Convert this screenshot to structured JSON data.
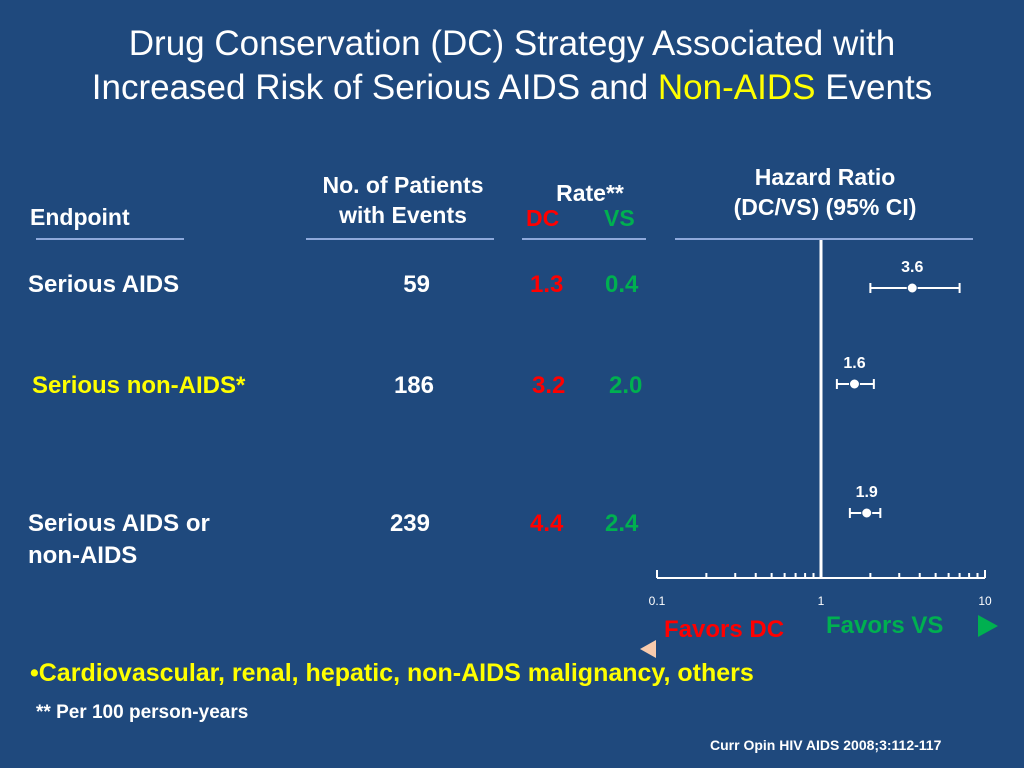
{
  "title": {
    "line1": "Drug Conservation (DC) Strategy Associated with",
    "line2_a": "Increased Risk of Serious AIDS and ",
    "line2_b": "Non-AIDS",
    "line2_c": " Events"
  },
  "headers": {
    "endpoint": "Endpoint",
    "patients_1": "No. of Patients",
    "patients_2": "with  Events",
    "rate": "Rate**",
    "dc": "DC",
    "vs": "VS",
    "hr_1": "Hazard Ratio",
    "hr_2": "(DC/VS) (95% CI)"
  },
  "rows": [
    {
      "endpoint": "Serious AIDS",
      "endpoint_2": "",
      "patients": "59",
      "dc": "1.3",
      "vs": "0.4"
    },
    {
      "endpoint": "Serious non-AIDS*",
      "endpoint_2": "",
      "patients": "186",
      "dc": "3.2",
      "vs": "2.0"
    },
    {
      "endpoint": "Serious AIDS or",
      "endpoint_2": "non-AIDS",
      "patients": "239",
      "dc": "4.4",
      "vs": "2.4"
    }
  ],
  "favors": {
    "dc": "Favors DC",
    "vs": "Favors VS"
  },
  "footnotes": {
    "bullet": "•Cardiovascular, renal, hepatic, non-AIDS malignancy, others",
    "per": "**  Per 100 person-years",
    "citation": "Curr Opin HIV AIDS 2008;3:112-117"
  },
  "colors": {
    "background": "#1F497D",
    "dc": "#FF0000",
    "vs": "#00B050",
    "highlight": "#FFFF00"
  },
  "chart_data": {
    "type": "forest",
    "scale": "log",
    "xlim": [
      0.1,
      10
    ],
    "ticks": [
      {
        "value": 0.1,
        "label": "0.1"
      },
      {
        "value": 1,
        "label": "1"
      },
      {
        "value": 10,
        "label": "10"
      }
    ],
    "reference_value": 1,
    "series": [
      {
        "label": "3.6",
        "value": 3.6,
        "ci_low": 2.0,
        "ci_high": 7.0
      },
      {
        "label": "1.6",
        "value": 1.6,
        "ci_low": 1.25,
        "ci_high": 2.1
      },
      {
        "label": "1.9",
        "value": 1.9,
        "ci_low": 1.5,
        "ci_high": 2.3
      }
    ]
  }
}
